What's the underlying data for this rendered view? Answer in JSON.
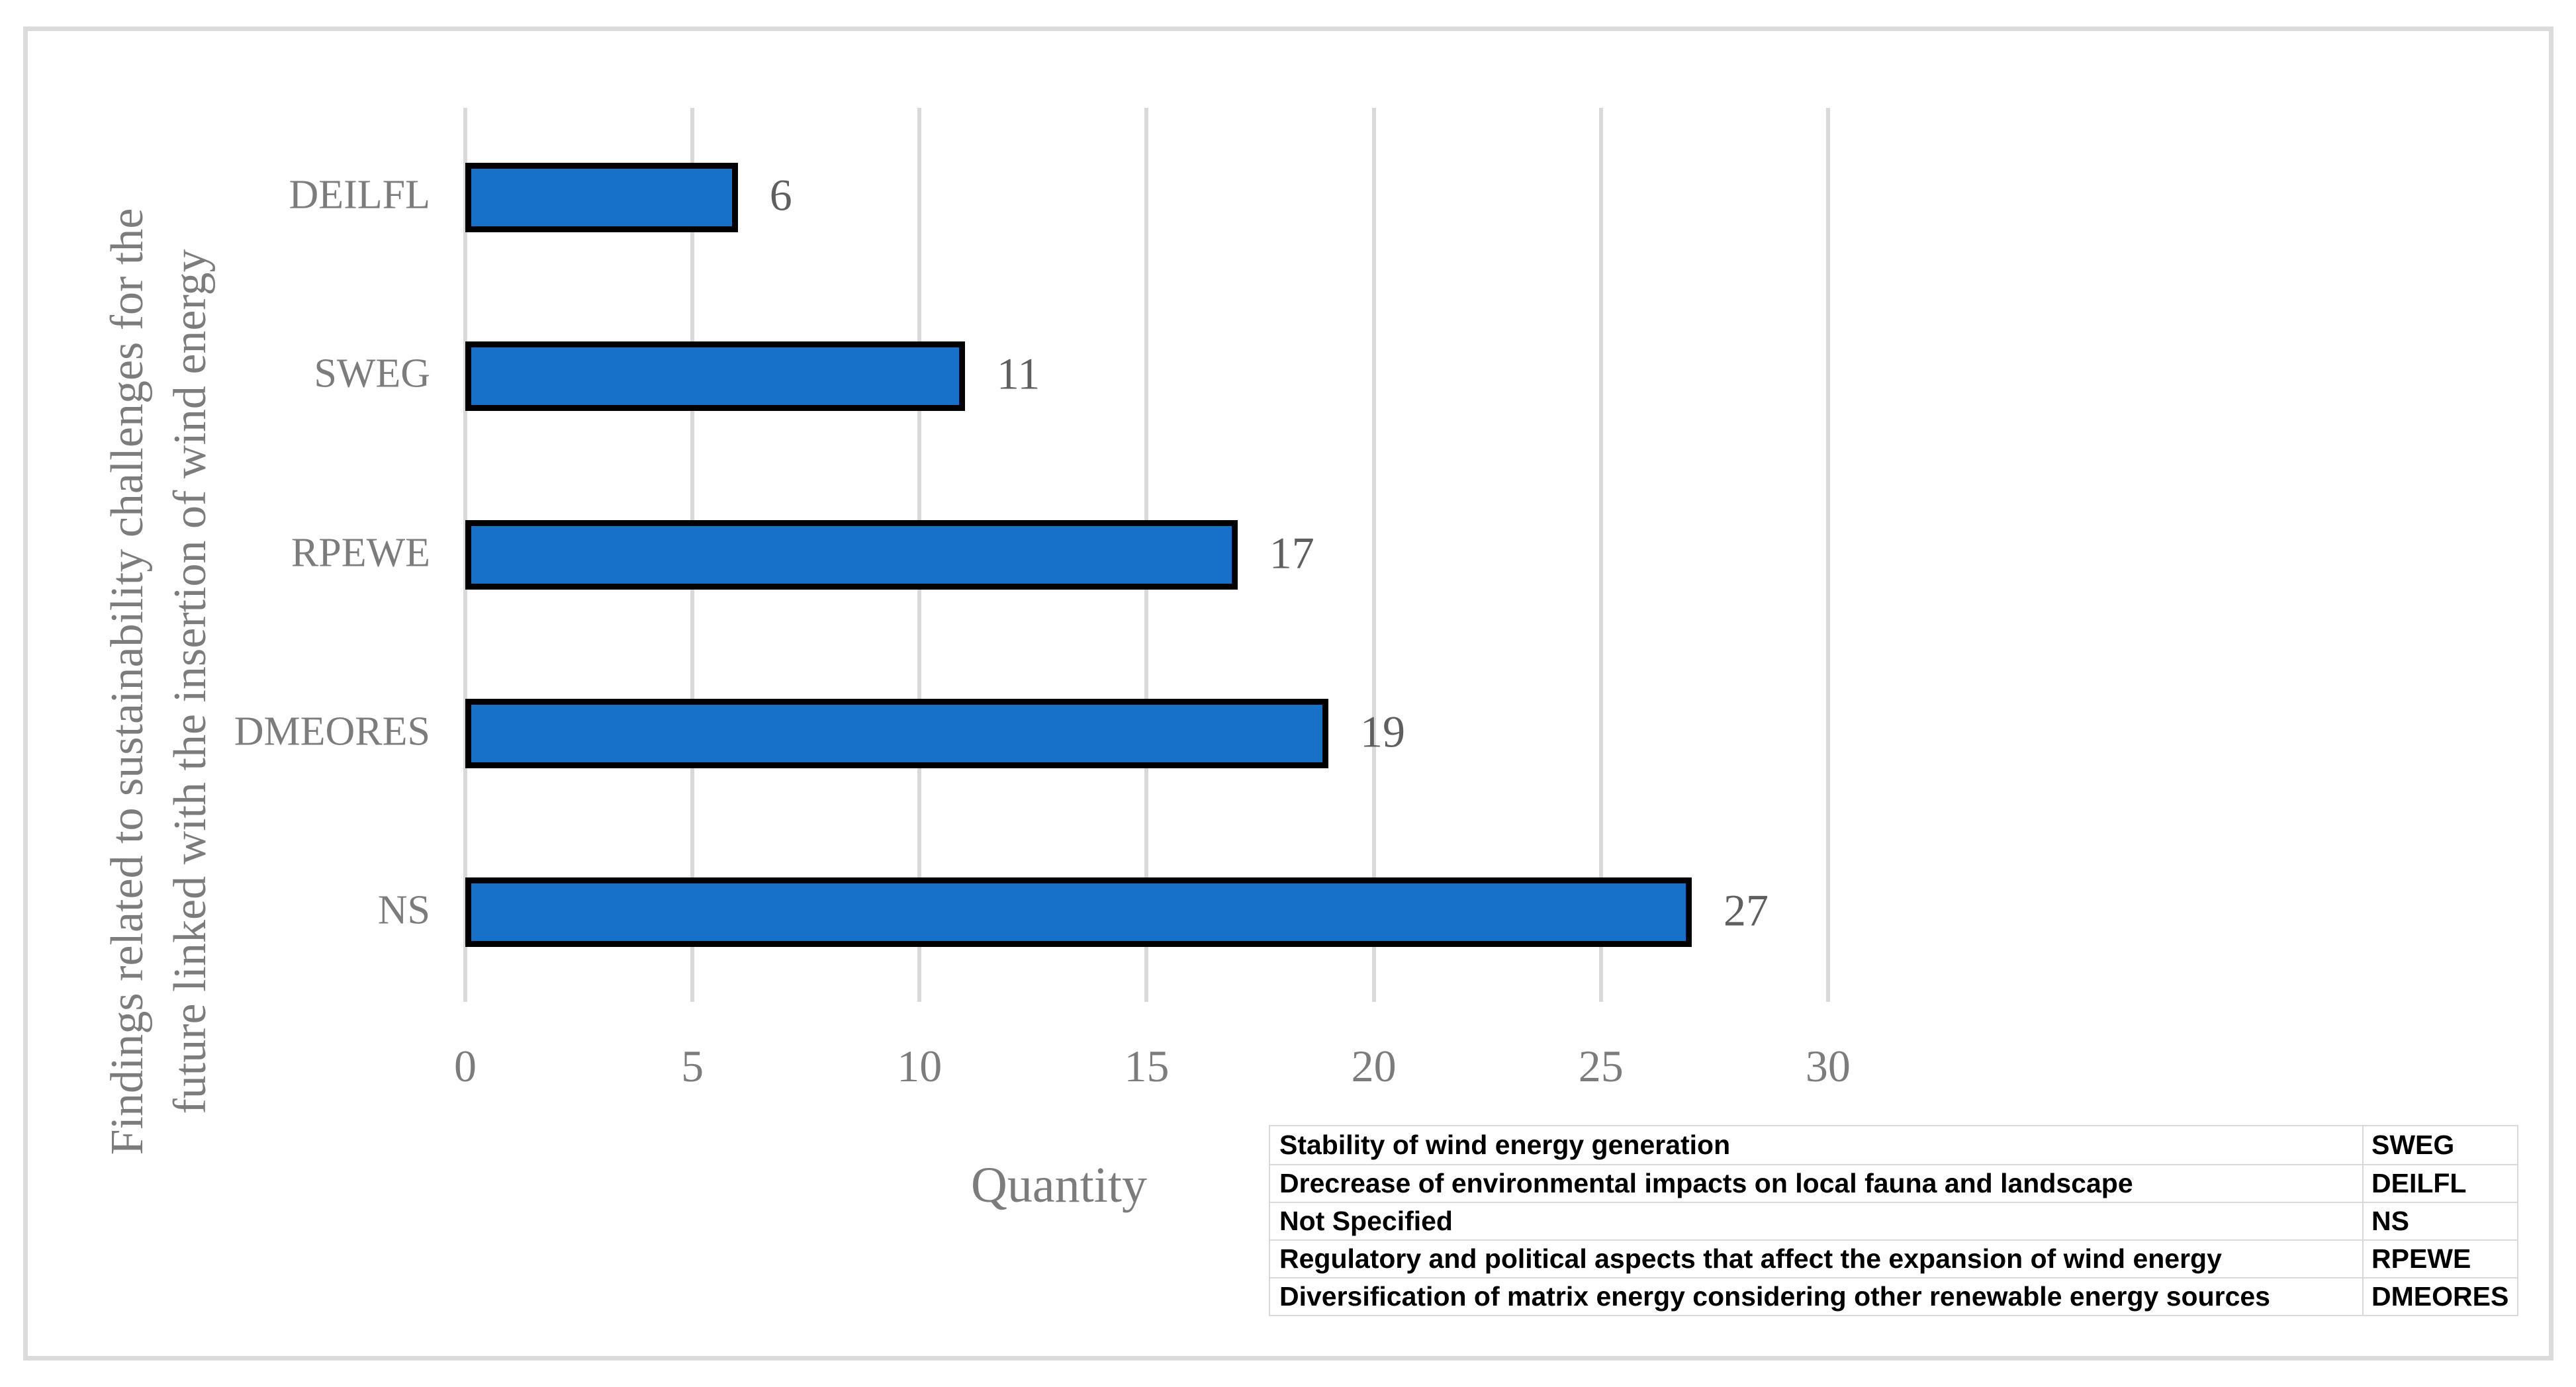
{
  "figure": {
    "background": "#ffffff",
    "frame_color": "#DBDBDB"
  },
  "chart_data": {
    "type": "bar",
    "orientation": "horizontal",
    "categories": [
      "DEILFL",
      "SWEG",
      "RPEWE",
      "DMEORES",
      "NS"
    ],
    "values": [
      6,
      11,
      17,
      19,
      27
    ],
    "data_labels": [
      "6",
      "11",
      "17",
      "19",
      "27"
    ],
    "xlabel": "Quantity",
    "ylabel_line1": "Findings related to sustainability challenges for the",
    "ylabel_line2": "future linked with the insertion of wind energy",
    "xlim": [
      0,
      30
    ],
    "xticks": [
      0,
      5,
      10,
      15,
      20,
      25,
      30
    ],
    "grid": "vertical-gridlines-on",
    "legend_position": "bottom-right-table",
    "bar_color": "#1772C7",
    "bar_border_color": "#000000",
    "gridline_color": "#D9D9D9",
    "axis_text_color": "#7C7C7C",
    "data_label_color": "#5F5F5F"
  },
  "legend_table": {
    "border_color": "#D9D9D9",
    "text_color": "#000000",
    "rows": [
      {
        "description": "Stability of wind energy generation",
        "abbr": "SWEG"
      },
      {
        "description": "Drecrease of environmental impacts on local fauna and landscape",
        "abbr": "DEILFL"
      },
      {
        "description": "Not Specified",
        "abbr": "NS"
      },
      {
        "description": "Regulatory and political aspects that affect the expansion of wind energy",
        "abbr": "RPEWE"
      },
      {
        "description": "Diversification of matrix energy considering other renewable energy sources",
        "abbr": "DMEORES"
      }
    ]
  }
}
